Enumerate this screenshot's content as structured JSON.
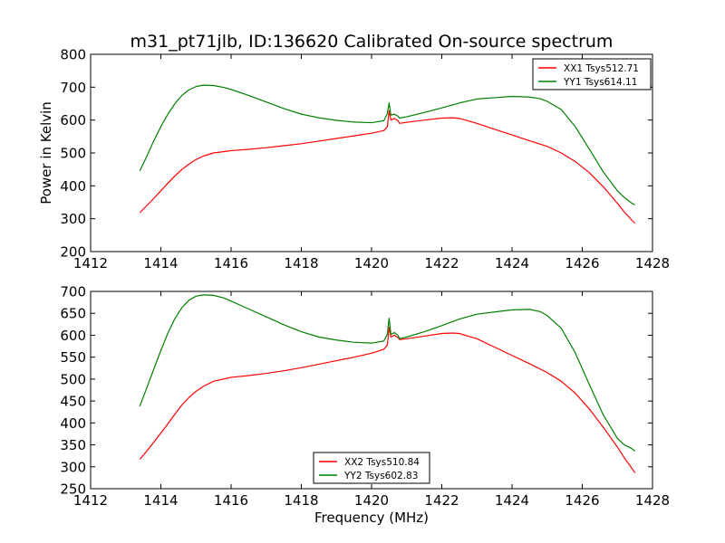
{
  "figure": {
    "title": "m31_pt71jlb, ID:136620 Calibrated On-source spectrum",
    "colors": {
      "xx": "#ff0000",
      "yy": "#008000"
    }
  },
  "chart_data": [
    {
      "type": "line",
      "ylabel": "Power in Kelvin",
      "xlabel": "",
      "xlim": [
        1412,
        1428
      ],
      "ylim": [
        200,
        800
      ],
      "xticks": [
        1412,
        1414,
        1416,
        1418,
        1420,
        1422,
        1424,
        1426,
        1428
      ],
      "yticks": [
        200,
        300,
        400,
        500,
        600,
        700,
        800
      ],
      "grid": false,
      "legend_position": "top-right",
      "series": [
        {
          "name": "XX1 Tsys512.71",
          "color": "#ff0000",
          "x": [
            1413.4,
            1413.6,
            1413.8,
            1414.0,
            1414.2,
            1414.4,
            1414.6,
            1414.8,
            1415.0,
            1415.2,
            1415.5,
            1416.0,
            1416.5,
            1417.0,
            1417.5,
            1418.0,
            1418.5,
            1419.0,
            1419.5,
            1420.0,
            1420.35,
            1420.45,
            1420.5,
            1420.55,
            1420.65,
            1420.75,
            1420.8,
            1421.0,
            1421.5,
            1422.0,
            1422.3,
            1422.5,
            1423.0,
            1423.5,
            1424.0,
            1424.5,
            1425.0,
            1425.4,
            1425.8,
            1426.2,
            1426.6,
            1427.0,
            1427.2,
            1427.4,
            1427.5
          ],
          "y": [
            318,
            340,
            362,
            385,
            408,
            430,
            450,
            466,
            480,
            490,
            500,
            507,
            511,
            516,
            522,
            528,
            536,
            544,
            552,
            560,
            568,
            580,
            628,
            600,
            605,
            598,
            590,
            593,
            600,
            606,
            607,
            605,
            590,
            572,
            555,
            537,
            520,
            500,
            474,
            440,
            397,
            347,
            320,
            297,
            286
          ]
        },
        {
          "name": "YY1 Tsys614.11",
          "color": "#008000",
          "x": [
            1413.4,
            1413.6,
            1413.8,
            1414.0,
            1414.2,
            1414.4,
            1414.6,
            1414.8,
            1415.0,
            1415.2,
            1415.5,
            1415.8,
            1416.0,
            1416.5,
            1417.0,
            1417.5,
            1418.0,
            1418.5,
            1419.0,
            1419.5,
            1420.0,
            1420.35,
            1420.45,
            1420.5,
            1420.55,
            1420.65,
            1420.75,
            1420.8,
            1421.0,
            1421.5,
            1422.0,
            1422.5,
            1423.0,
            1423.5,
            1424.0,
            1424.5,
            1424.8,
            1425.0,
            1425.4,
            1425.8,
            1426.2,
            1426.6,
            1427.0,
            1427.2,
            1427.4,
            1427.5
          ],
          "y": [
            445,
            490,
            537,
            580,
            618,
            650,
            675,
            692,
            702,
            706,
            705,
            699,
            693,
            675,
            655,
            635,
            618,
            607,
            599,
            594,
            592,
            598,
            620,
            652,
            615,
            618,
            612,
            606,
            610,
            623,
            637,
            652,
            664,
            668,
            672,
            670,
            665,
            657,
            632,
            580,
            512,
            442,
            385,
            364,
            348,
            342
          ]
        }
      ]
    },
    {
      "type": "line",
      "ylabel": "",
      "xlabel": "Frequency (MHz)",
      "xlim": [
        1412,
        1428
      ],
      "ylim": [
        250,
        700
      ],
      "xticks": [
        1412,
        1414,
        1416,
        1418,
        1420,
        1422,
        1424,
        1426,
        1428
      ],
      "yticks": [
        250,
        300,
        350,
        400,
        450,
        500,
        550,
        600,
        650,
        700
      ],
      "grid": false,
      "legend_position": "bottom-center",
      "series": [
        {
          "name": "XX2 Tsys510.84",
          "color": "#ff0000",
          "x": [
            1413.4,
            1413.6,
            1413.8,
            1414.0,
            1414.2,
            1414.4,
            1414.6,
            1414.8,
            1415.0,
            1415.2,
            1415.5,
            1416.0,
            1416.5,
            1417.0,
            1417.5,
            1418.0,
            1418.5,
            1419.0,
            1419.5,
            1420.0,
            1420.35,
            1420.45,
            1420.5,
            1420.55,
            1420.65,
            1420.75,
            1420.8,
            1421.0,
            1421.5,
            1422.0,
            1422.3,
            1422.5,
            1423.0,
            1423.5,
            1424.0,
            1424.5,
            1425.0,
            1425.4,
            1425.8,
            1426.2,
            1426.6,
            1427.0,
            1427.2,
            1427.4,
            1427.5
          ],
          "y": [
            317,
            336,
            356,
            377,
            398,
            420,
            441,
            458,
            472,
            483,
            495,
            504,
            508,
            513,
            519,
            526,
            534,
            542,
            550,
            559,
            568,
            578,
            618,
            596,
            600,
            595,
            590,
            592,
            598,
            604,
            605,
            604,
            592,
            573,
            554,
            535,
            515,
            495,
            468,
            432,
            390,
            345,
            320,
            298,
            286
          ]
        },
        {
          "name": "YY2 Tsys602.83",
          "color": "#008000",
          "x": [
            1413.4,
            1413.6,
            1413.8,
            1414.0,
            1414.2,
            1414.4,
            1414.6,
            1414.8,
            1415.0,
            1415.2,
            1415.5,
            1415.8,
            1416.0,
            1416.5,
            1417.0,
            1417.5,
            1418.0,
            1418.5,
            1419.0,
            1419.5,
            1420.0,
            1420.35,
            1420.45,
            1420.5,
            1420.55,
            1420.65,
            1420.75,
            1420.8,
            1421.0,
            1421.5,
            1422.0,
            1422.5,
            1423.0,
            1423.5,
            1424.0,
            1424.5,
            1424.8,
            1425.0,
            1425.4,
            1425.8,
            1426.2,
            1426.6,
            1427.0,
            1427.2,
            1427.4,
            1427.5
          ],
          "y": [
            438,
            480,
            523,
            565,
            605,
            638,
            663,
            680,
            689,
            692,
            691,
            685,
            678,
            660,
            642,
            624,
            608,
            596,
            589,
            584,
            582,
            587,
            603,
            639,
            602,
            606,
            600,
            592,
            596,
            608,
            622,
            637,
            648,
            653,
            658,
            659,
            654,
            645,
            616,
            560,
            488,
            418,
            365,
            350,
            342,
            336
          ]
        }
      ]
    }
  ]
}
